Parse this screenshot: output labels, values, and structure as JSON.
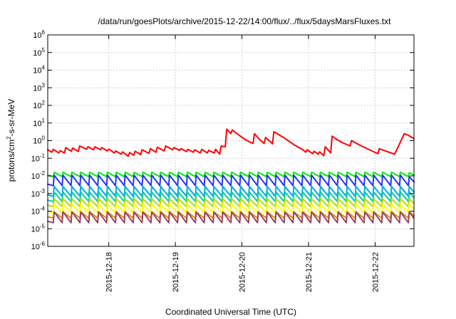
{
  "chart_data": {
    "type": "line",
    "title": "/data/run/goesPlots/archive/2015-12-22/14:00/flux/../flux/5daysMarsFluxes.txt",
    "xlabel": "Coordinated Universal Time (UTC)",
    "ylabel": {
      "prefix": "protons/cm",
      "sup": "2",
      "suffix": "-s-sr-MeV"
    },
    "y_scale": "log",
    "ylim": [
      1e-06,
      1000000.0
    ],
    "y_ticks": [
      {
        "base": "10",
        "exp": "-6"
      },
      {
        "base": "10",
        "exp": "-5"
      },
      {
        "base": "10",
        "exp": "-4"
      },
      {
        "base": "10",
        "exp": "-3"
      },
      {
        "base": "10",
        "exp": "-2"
      },
      {
        "base": "10",
        "exp": "-1"
      },
      {
        "base": "10",
        "exp": "0"
      },
      {
        "base": "10",
        "exp": "1"
      },
      {
        "base": "10",
        "exp": "2"
      },
      {
        "base": "10",
        "exp": "3"
      },
      {
        "base": "10",
        "exp": "4"
      },
      {
        "base": "10",
        "exp": "5"
      },
      {
        "base": "10",
        "exp": "6"
      }
    ],
    "xlim": [
      "2015-12-17 02:00",
      "2015-12-22 14:00"
    ],
    "x_ticks": [
      "2015-12-18",
      "2015-12-19",
      "2015-12-20",
      "2015-12-21",
      "2015-12-22"
    ],
    "grid": true,
    "legend": "none",
    "series": [
      {
        "color": "#ff0000",
        "points": [
          [
            "2015-12-17 02:00",
            0.3
          ],
          [
            "2015-12-17 03:30",
            0.22
          ],
          [
            "2015-12-17 04:00",
            0.32
          ],
          [
            "2015-12-17 06:00",
            0.2
          ],
          [
            "2015-12-17 06:30",
            0.27
          ],
          [
            "2015-12-17 08:00",
            0.2
          ],
          [
            "2015-12-17 08:30",
            0.4
          ],
          [
            "2015-12-17 10:30",
            0.25
          ],
          [
            "2015-12-17 11:00",
            0.38
          ],
          [
            "2015-12-17 13:00",
            0.24
          ],
          [
            "2015-12-17 13:30",
            0.5
          ],
          [
            "2015-12-17 16:00",
            0.32
          ],
          [
            "2015-12-17 16:30",
            0.45
          ],
          [
            "2015-12-17 18:30",
            0.3
          ],
          [
            "2015-12-17 19:00",
            0.45
          ],
          [
            "2015-12-17 21:00",
            0.3
          ],
          [
            "2015-12-17 21:30",
            0.4
          ],
          [
            "2015-12-17 23:30",
            0.26
          ],
          [
            "2015-12-18 00:00",
            0.33
          ],
          [
            "2015-12-18 02:00",
            0.2
          ],
          [
            "2015-12-18 02:30",
            0.26
          ],
          [
            "2015-12-18 04:30",
            0.17
          ],
          [
            "2015-12-18 05:00",
            0.23
          ],
          [
            "2015-12-18 07:00",
            0.13
          ],
          [
            "2015-12-18 07:30",
            0.21
          ],
          [
            "2015-12-18 09:00",
            0.15
          ],
          [
            "2015-12-18 09:30",
            0.25
          ],
          [
            "2015-12-18 11:30",
            0.16
          ],
          [
            "2015-12-18 12:00",
            0.3
          ],
          [
            "2015-12-18 14:30",
            0.19
          ],
          [
            "2015-12-18 15:00",
            0.35
          ],
          [
            "2015-12-18 17:00",
            0.22
          ],
          [
            "2015-12-18 17:30",
            0.42
          ],
          [
            "2015-12-18 20:00",
            0.26
          ],
          [
            "2015-12-18 20:30",
            0.5
          ],
          [
            "2015-12-18 23:00",
            0.3
          ],
          [
            "2015-12-18 23:30",
            0.4
          ],
          [
            "2015-12-19 01:30",
            0.28
          ],
          [
            "2015-12-19 02:00",
            0.35
          ],
          [
            "2015-12-19 04:00",
            0.24
          ],
          [
            "2015-12-19 04:30",
            0.32
          ],
          [
            "2015-12-19 06:30",
            0.22
          ],
          [
            "2015-12-19 07:00",
            0.3
          ],
          [
            "2015-12-19 09:00",
            0.2
          ],
          [
            "2015-12-19 09:30",
            0.32
          ],
          [
            "2015-12-19 11:30",
            0.2
          ],
          [
            "2015-12-19 12:00",
            0.28
          ],
          [
            "2015-12-19 14:00",
            0.2
          ],
          [
            "2015-12-19 14:30",
            0.32
          ],
          [
            "2015-12-19 16:00",
            0.17
          ],
          [
            "2015-12-19 16:30",
            0.5
          ],
          [
            "2015-12-19 18:00",
            0.45
          ],
          [
            "2015-12-19 18:30",
            4.5
          ],
          [
            "2015-12-19 20:00",
            2.5
          ],
          [
            "2015-12-19 20:30",
            4.0
          ],
          [
            "2015-12-19 23:00",
            2.0
          ],
          [
            "2015-12-20 01:00",
            1.2
          ],
          [
            "2015-12-20 03:00",
            0.8
          ],
          [
            "2015-12-20 04:00",
            0.7
          ],
          [
            "2015-12-20 04:30",
            2.5
          ],
          [
            "2015-12-20 06:30",
            1.1
          ],
          [
            "2015-12-20 08:00",
            0.7
          ],
          [
            "2015-12-20 08:30",
            1.5
          ],
          [
            "2015-12-20 10:30",
            0.8
          ],
          [
            "2015-12-20 11:00",
            0.65
          ],
          [
            "2015-12-20 11:30",
            3.2
          ],
          [
            "2015-12-20 15:00",
            1.5
          ],
          [
            "2015-12-20 19:00",
            0.55
          ],
          [
            "2015-12-20 22:00",
            0.3
          ],
          [
            "2015-12-20 23:00",
            0.22
          ],
          [
            "2015-12-20 23:30",
            0.3
          ],
          [
            "2015-12-21 01:30",
            0.18
          ],
          [
            "2015-12-21 02:00",
            0.25
          ],
          [
            "2015-12-21 03:30",
            0.17
          ],
          [
            "2015-12-21 04:00",
            0.23
          ],
          [
            "2015-12-21 05:30",
            0.14
          ],
          [
            "2015-12-21 06:00",
            0.45
          ],
          [
            "2015-12-21 08:00",
            0.2
          ],
          [
            "2015-12-21 08:30",
            1.8
          ],
          [
            "2015-12-21 10:00",
            1.2
          ],
          [
            "2015-12-21 12:00",
            0.8
          ],
          [
            "2015-12-21 15:00",
            0.5
          ],
          [
            "2015-12-21 15:30",
            1.0
          ],
          [
            "2015-12-21 19:00",
            0.5
          ],
          [
            "2015-12-21 22:00",
            0.3
          ],
          [
            "2015-12-22 01:00",
            0.18
          ],
          [
            "2015-12-22 01:30",
            0.35
          ],
          [
            "2015-12-22 04:00",
            0.25
          ],
          [
            "2015-12-22 07:00",
            0.17
          ],
          [
            "2015-12-22 08:00",
            0.35
          ],
          [
            "2015-12-22 10:30",
            2.5
          ],
          [
            "2015-12-22 12:00",
            2.0
          ],
          [
            "2015-12-22 14:00",
            1.3
          ]
        ]
      },
      {
        "color": "#00ee00",
        "periodic": {
          "start": "2015-12-17 04:00",
          "period_hours": 3.2,
          "rise_hours": 0.3,
          "peak": 0.016,
          "trough": 0.009,
          "last_peak": 0.015
        }
      },
      {
        "color": "#2233ff",
        "periodic": {
          "start": "2015-12-17 04:00",
          "period_hours": 3.2,
          "rise_hours": 0.3,
          "peak": 0.011,
          "trough": 0.0028,
          "last_peak": 0.009
        }
      },
      {
        "color": "#00aadd",
        "periodic": {
          "start": "2015-12-17 04:00",
          "period_hours": 3.2,
          "rise_hours": 0.3,
          "peak": 0.0025,
          "trough": 0.0007
        }
      },
      {
        "color": "#00ccaa",
        "periodic": {
          "start": "2015-12-17 04:00",
          "period_hours": 3.2,
          "rise_hours": 0.3,
          "peak": 0.0012,
          "trough": 0.00035
        }
      },
      {
        "color": "#aadd00",
        "periodic": {
          "start": "2015-12-17 04:00",
          "period_hours": 3.2,
          "rise_hours": 0.3,
          "peak": 0.0005,
          "trough": 0.00018
        }
      },
      {
        "color": "#ffff00",
        "periodic": {
          "start": "2015-12-17 04:00",
          "period_hours": 3.2,
          "rise_hours": 0.3,
          "peak": 0.00025,
          "trough": 8e-05
        }
      },
      {
        "color": "#ee8800",
        "periodic": {
          "start": "2015-12-17 04:00",
          "period_hours": 3.2,
          "rise_hours": 0.3,
          "peak": 9e-05,
          "trough": 4e-05
        }
      },
      {
        "color": "#994466",
        "periodic": {
          "start": "2015-12-17 04:00",
          "period_hours": 3.2,
          "rise_hours": 0.3,
          "peak": 9e-05,
          "trough": 2.2e-05
        }
      }
    ]
  }
}
